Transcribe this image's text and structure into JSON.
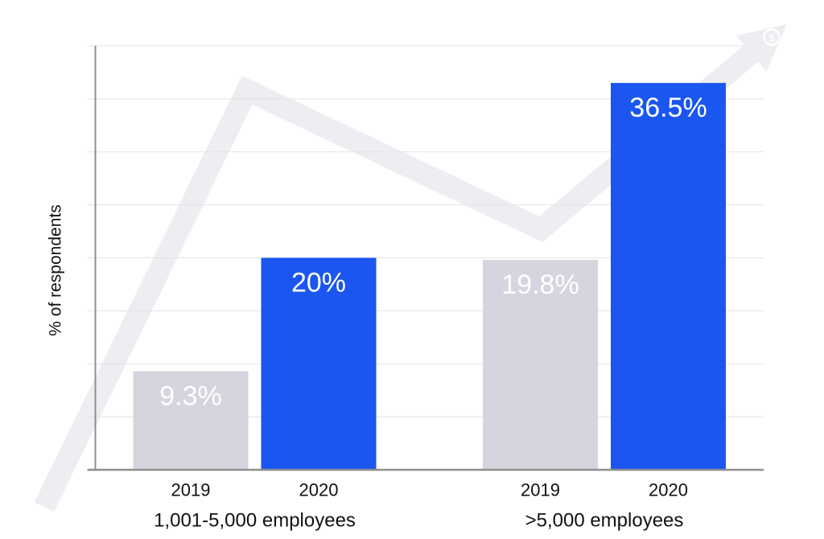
{
  "page": {
    "background": "#ffffff"
  },
  "chart_data": {
    "type": "bar",
    "title": "",
    "ylabel": "% of respondents",
    "xlabel": "",
    "ylim": [
      0,
      40
    ],
    "gridline_step": 5,
    "grid": true,
    "legend_position": "none",
    "categories": [
      "1,001-5,000 employees",
      ">5,000 employees"
    ],
    "series": [
      {
        "name": "2019",
        "values": [
          9.3,
          19.8
        ],
        "data_labels": [
          "9.3%",
          "19.8%"
        ],
        "color": "#d4d5de"
      },
      {
        "name": "2020",
        "values": [
          20,
          36.5
        ],
        "data_labels": [
          "20%",
          "36.5%"
        ],
        "color": "#1b56f0"
      }
    ]
  },
  "decor": {
    "trend_arrow": "upward-zigzag-arrow",
    "dollar_badge": "$",
    "watermark_color": "#ededf2",
    "badge_color": "#ffffff"
  },
  "colors": {
    "bar_2019": "#d4d5de",
    "bar_2020": "#1b56f0",
    "bar_label_text": "#ffffff",
    "gridline": "#e3e3e3",
    "axis": "#8f8f8f",
    "label_text": "#111111"
  }
}
